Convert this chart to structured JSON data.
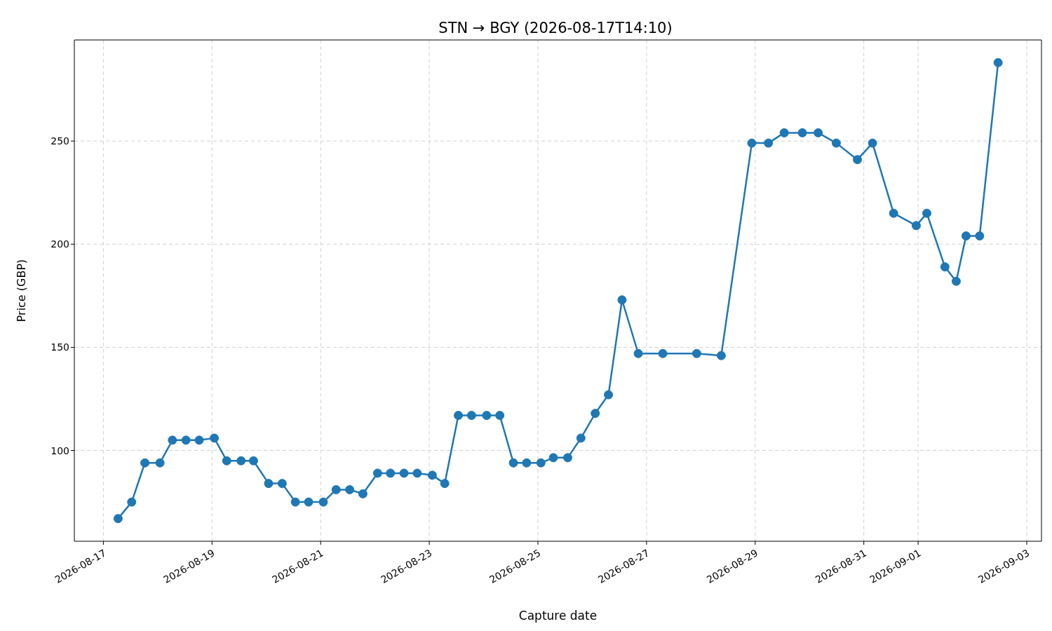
{
  "chart_data": {
    "type": "line",
    "title": "STN → BGY (2026-08-17T14:10)",
    "xlabel": "Capture date",
    "ylabel": "Price (GBP)",
    "x": [
      "2026-08-17T06:30",
      "2026-08-17T12:30",
      "2026-08-17T18:20",
      "2026-08-18T01:00",
      "2026-08-18T06:30",
      "2026-08-18T12:30",
      "2026-08-18T18:20",
      "2026-08-19T01:00",
      "2026-08-19T06:30",
      "2026-08-19T12:50",
      "2026-08-19T18:20",
      "2026-08-20T01:00",
      "2026-08-20T07:00",
      "2026-08-20T12:50",
      "2026-08-20T18:40",
      "2026-08-21T01:10",
      "2026-08-21T06:50",
      "2026-08-21T12:50",
      "2026-08-21T18:40",
      "2026-08-22T01:10",
      "2026-08-22T06:50",
      "2026-08-22T12:50",
      "2026-08-22T18:40",
      "2026-08-23T01:20",
      "2026-08-23T06:50",
      "2026-08-23T12:50",
      "2026-08-23T18:40",
      "2026-08-24T01:20",
      "2026-08-24T07:10",
      "2026-08-24T13:10",
      "2026-08-24T19:00",
      "2026-08-25T01:20",
      "2026-08-25T06:50",
      "2026-08-25T13:10",
      "2026-08-25T19:00",
      "2026-08-26T01:20",
      "2026-08-26T07:10",
      "2026-08-26T13:10",
      "2026-08-26T20:20",
      "2026-08-27T07:10",
      "2026-08-27T22:10",
      "2026-08-28T09:00",
      "2026-08-28T22:30",
      "2026-08-29T05:50",
      "2026-08-29T12:50",
      "2026-08-29T20:50",
      "2026-08-30T03:50",
      "2026-08-30T11:50",
      "2026-08-30T21:10",
      "2026-08-31T03:50",
      "2026-08-31T13:10",
      "2026-08-31T23:10",
      "2026-09-01T03:50",
      "2026-09-01T11:50",
      "2026-09-01T16:50",
      "2026-09-01T21:10",
      "2026-09-02T03:10",
      "2026-09-02T11:20"
    ],
    "series": [
      {
        "color": "#1f77b4",
        "values": [
          67,
          75,
          94,
          94,
          105,
          105,
          105,
          106,
          95,
          95,
          95,
          84,
          84,
          75,
          75,
          75,
          81,
          81,
          79,
          89,
          89,
          89,
          89,
          88,
          84,
          117,
          117,
          117,
          117,
          94,
          94,
          94,
          96.5,
          96.5,
          106,
          118,
          127,
          173,
          147,
          147,
          147,
          146,
          249,
          249,
          254,
          254,
          254,
          249,
          241,
          249,
          215,
          209,
          215,
          189,
          182,
          204,
          204,
          288
        ]
      }
    ],
    "xlim": [
      "2026-08-16T11:10",
      "2026-09-03T06:30"
    ],
    "xticks": [
      "2026-08-17",
      "2026-08-19",
      "2026-08-21",
      "2026-08-23",
      "2026-08-25",
      "2026-08-27",
      "2026-08-29",
      "2026-08-31",
      "2026-09-01",
      "2026-09-03"
    ],
    "ylim": [
      56,
      299
    ],
    "yticks": [
      100,
      150,
      200,
      250
    ],
    "grid": true,
    "marker": "circle",
    "line_style": "solid"
  }
}
